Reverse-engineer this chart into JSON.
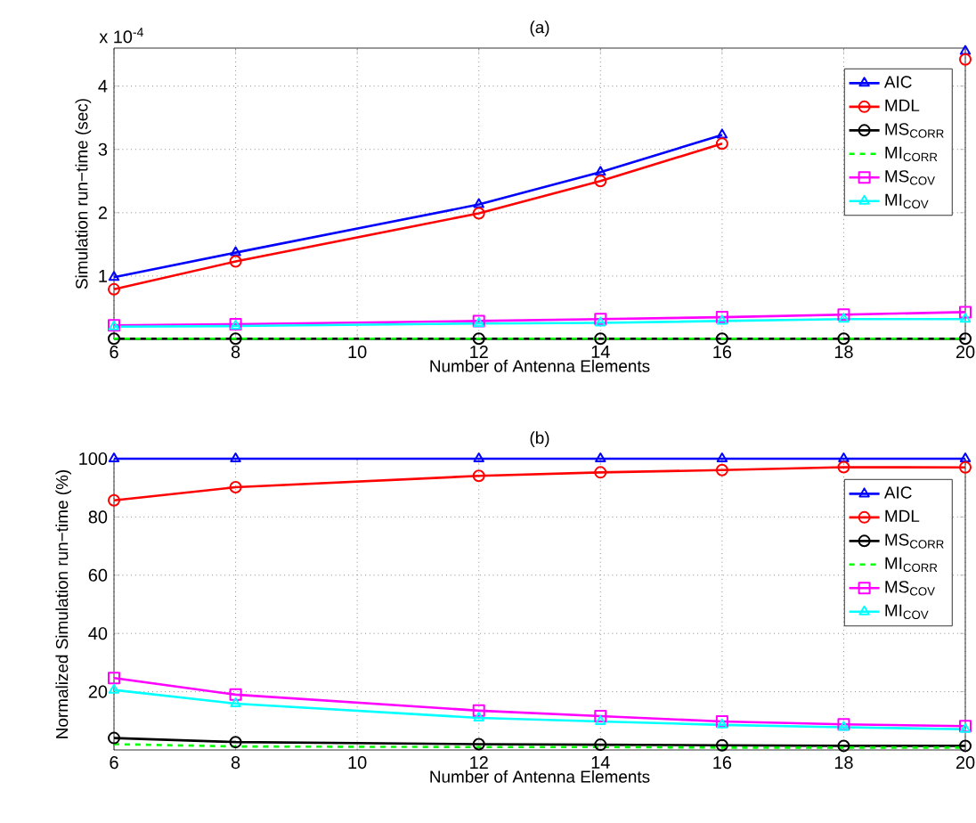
{
  "chart_data": [
    {
      "type": "line",
      "title": "(a)",
      "xlabel": "Number of Antenna Elements",
      "ylabel": "Simulation run−time (sec)",
      "annotations": [
        "x 10$^{-4}$"
      ],
      "x": [
        6,
        8,
        12,
        14,
        16,
        18,
        20
      ],
      "xlim": [
        6,
        20
      ],
      "xticks": [
        6,
        8,
        10,
        12,
        14,
        16,
        18,
        20
      ],
      "ylim": [
        0,
        4.6
      ],
      "yticks": [
        1,
        2,
        3,
        4
      ],
      "grid": true,
      "legend": "top right",
      "series": [
        {
          "name": "AIC",
          "color": "#0000ff",
          "marker": "triangle",
          "line_style": "solid",
          "values": [
            0.98,
            1.37,
            2.13,
            2.64,
            3.23,
            null,
            4.55
          ]
        },
        {
          "name": "MDL",
          "color": "#ff0000",
          "marker": "circle",
          "line_style": "solid",
          "values": [
            0.79,
            1.23,
            1.99,
            2.5,
            3.09,
            null,
            4.42
          ]
        },
        {
          "name": "MS$_{CORR}$",
          "color": "#000000",
          "marker": "circle",
          "line_style": "solid",
          "values": [
            0.01,
            0.01,
            0.01,
            0.01,
            0.01,
            0.01,
            0.01
          ]
        },
        {
          "name": "MI$_{CORR}$",
          "color": "#00ff00",
          "marker": "none",
          "line_style": "dashed",
          "values": [
            0.01,
            0.01,
            0.01,
            0.01,
            0.01,
            0.01,
            0.01
          ]
        },
        {
          "name": "MS$_{COV}$",
          "color": "#ff00ff",
          "marker": "square",
          "line_style": "solid",
          "values": [
            0.22,
            0.24,
            0.29,
            0.32,
            0.35,
            0.39,
            0.43
          ]
        },
        {
          "name": "MI$_{COV}$",
          "color": "#00ffff",
          "marker": "triangle",
          "line_style": "solid",
          "values": [
            0.2,
            0.21,
            0.25,
            0.26,
            0.29,
            0.32,
            0.32
          ]
        }
      ]
    },
    {
      "type": "line",
      "title": "(b)",
      "xlabel": "Number of Antenna Elements",
      "ylabel": "Normalized Simulation run−time (%)",
      "x": [
        6,
        8,
        12,
        14,
        16,
        18,
        20
      ],
      "xlim": [
        6,
        20
      ],
      "xticks": [
        6,
        8,
        10,
        12,
        14,
        16,
        18,
        20
      ],
      "ylim": [
        0,
        100
      ],
      "yticks": [
        20,
        40,
        60,
        80,
        100
      ],
      "grid": true,
      "legend": "top right",
      "series": [
        {
          "name": "AIC",
          "color": "#0000ff",
          "marker": "triangle",
          "line_style": "solid",
          "values": [
            100,
            100,
            100,
            100,
            100,
            100,
            100
          ]
        },
        {
          "name": "MDL",
          "color": "#ff0000",
          "marker": "circle",
          "line_style": "solid",
          "values": [
            85.7,
            90.2,
            94.1,
            95.3,
            96.1,
            97.1,
            97
          ]
        },
        {
          "name": "MS$_{CORR}$",
          "color": "#000000",
          "marker": "circle",
          "line_style": "solid",
          "values": [
            4.1,
            2.7,
            2,
            1.8,
            1.6,
            1.4,
            1.4
          ]
        },
        {
          "name": "MI$_{CORR}$",
          "color": "#00ff00",
          "marker": "none",
          "line_style": "dashed",
          "values": [
            2,
            1.2,
            1,
            1,
            0.8,
            0.8,
            0.8
          ]
        },
        {
          "name": "MS$_{COV}$",
          "color": "#ff00ff",
          "marker": "square",
          "line_style": "solid",
          "values": [
            24.7,
            19,
            13.5,
            11.6,
            9.8,
            8.8,
            8.2
          ]
        },
        {
          "name": "MI$_{COV}$",
          "color": "#00ffff",
          "marker": "triangle",
          "line_style": "solid",
          "values": [
            20.6,
            15.9,
            11,
            9.8,
            8.6,
            7.8,
            7.1
          ]
        }
      ]
    }
  ]
}
